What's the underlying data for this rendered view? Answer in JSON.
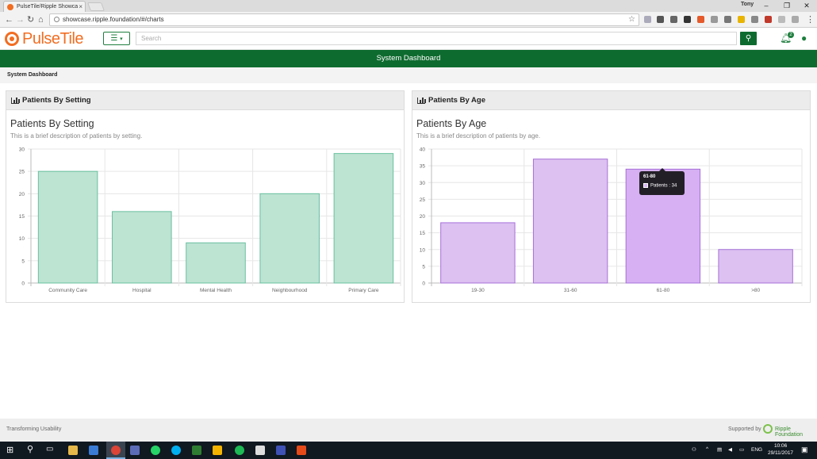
{
  "browser": {
    "tab_title": "PulseTile/Ripple Showca",
    "tab_close": "×",
    "url": "showcase.ripple.foundation/#/charts",
    "user_name": "Tony",
    "win_minimize": "–",
    "win_restore": "❐",
    "win_close": "✕"
  },
  "app": {
    "logo_text": "PulseTile",
    "search_placeholder": "Search",
    "notification_count": "2",
    "page_title": "System Dashboard",
    "breadcrumb": "System Dashboard"
  },
  "panels": [
    {
      "header": "Patients By Setting",
      "title": "Patients By Setting",
      "description": "This is a brief description of patients by setting."
    },
    {
      "header": "Patients By Age",
      "title": "Patients By Age",
      "description": "This is a brief description of patients by age."
    }
  ],
  "chart_data": [
    {
      "type": "bar",
      "categories": [
        "Community Care",
        "Hospital",
        "Mental Health",
        "Neighbourhood",
        "Primary Care"
      ],
      "values": [
        25,
        16,
        9,
        20,
        29
      ],
      "ylim": [
        0,
        30
      ],
      "yticks": [
        0,
        5,
        10,
        15,
        20,
        25,
        30
      ],
      "grid": true,
      "fill": "#bde3d3",
      "stroke": "#68c0a0"
    },
    {
      "type": "bar",
      "categories": [
        "19-30",
        "31-60",
        "61-80",
        ">80"
      ],
      "series": [
        {
          "name": "Patients",
          "values": [
            18,
            37,
            34,
            10
          ]
        }
      ],
      "ylim": [
        0,
        40
      ],
      "yticks": [
        0,
        5,
        10,
        15,
        20,
        25,
        30,
        35,
        40
      ],
      "grid": true,
      "fill": "#dcc1f1",
      "stroke": "#a66fd8",
      "highlight_fill": "#d6b0f3"
    }
  ],
  "tooltip": {
    "title": "61-80",
    "label": "Patients : 34"
  },
  "footer": {
    "left_text": "Transforming Usability",
    "supported_by": "Supported by",
    "partner": "Ripple Foundation"
  },
  "taskbar": {
    "language": "ENG",
    "time": "10:06",
    "date": "29/11/2017"
  }
}
